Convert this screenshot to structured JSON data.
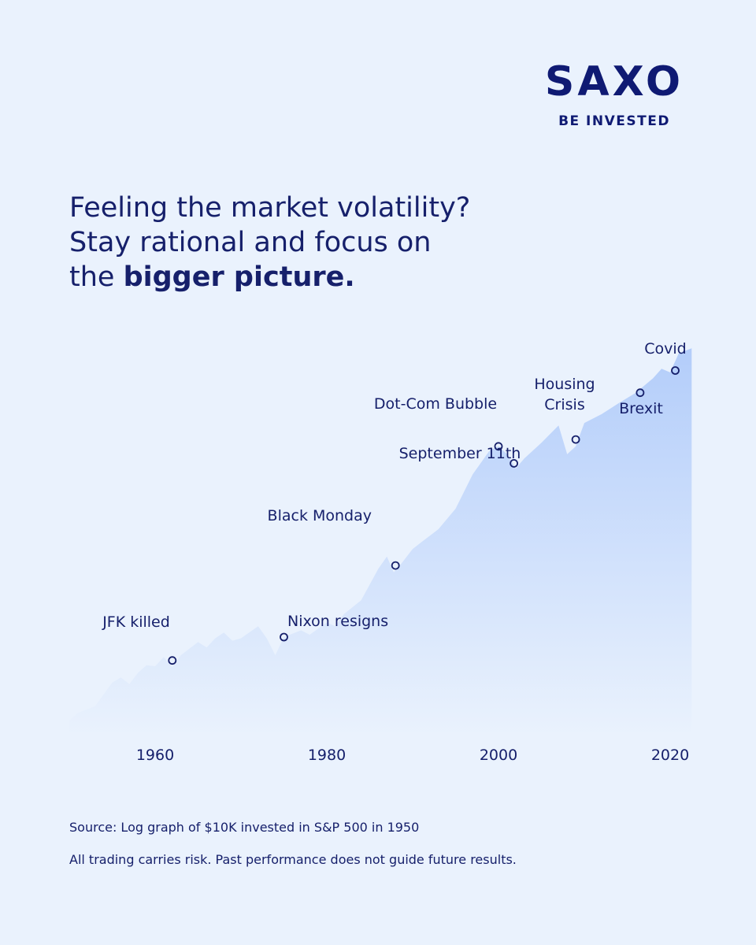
{
  "brand": {
    "name": "SAXO",
    "tagline": "BE INVESTED"
  },
  "headline": {
    "line1": "Feeling the market volatility?",
    "line2": "Stay rational and focus on",
    "line3_prefix": "the ",
    "line3_bold": "bigger picture."
  },
  "chart_data": {
    "type": "area",
    "scale": "log",
    "xlabel": "",
    "ylabel": "",
    "x_ticks": [
      "1960",
      "1980",
      "2000",
      "2020"
    ],
    "xlim": [
      1950,
      2022.5
    ],
    "grid": false,
    "colors": {
      "fill_top": "#b3cdfa",
      "fill_bottom": "#eaf2fd",
      "marker": "#16206b"
    },
    "series": [
      {
        "x": [
          1950,
          1951,
          1953,
          1955,
          1956,
          1957,
          1958,
          1959,
          1960,
          1961,
          1962,
          1963,
          1965,
          1966,
          1967,
          1968,
          1969,
          1970,
          1972,
          1973,
          1974,
          1975,
          1977,
          1978,
          1980,
          1981,
          1982,
          1984,
          1986,
          1987,
          1987.8,
          1988.5,
          1990,
          1991,
          1993,
          1995,
          1997,
          1999,
          2000,
          2001,
          2002,
          2003,
          2005,
          2007,
          2008,
          2009,
          2010,
          2012,
          2014,
          2016,
          2018,
          2019,
          2020,
          2021,
          2022.5
        ],
        "y": [
          10000,
          11500,
          13000,
          20000,
          22000,
          19500,
          24000,
          27500,
          27000,
          32000,
          26500,
          33000,
          42000,
          38000,
          45000,
          50000,
          43000,
          45000,
          56000,
          45000,
          33000,
          46000,
          52000,
          48000,
          60000,
          56000,
          70000,
          90000,
          160000,
          200000,
          150000,
          170000,
          230000,
          260000,
          330000,
          480000,
          900000,
          1400000,
          1500000,
          1300000,
          1000000,
          1200000,
          1600000,
          2200000,
          1300000,
          1500000,
          2300000,
          2700000,
          3300000,
          4000000,
          5200000,
          6200000,
          5800000,
          8200000,
          9000000
        ]
      }
    ],
    "annotations": [
      {
        "label": "JFK killed",
        "x": 1962,
        "y": 30000
      },
      {
        "label": "Nixon resigns",
        "x": 1975,
        "y": 46000
      },
      {
        "label": "Black Monday",
        "x": 1988,
        "y": 170000
      },
      {
        "label": "Dot-Com Bubble",
        "x": 2000,
        "y": 1500000
      },
      {
        "label": "September 11th",
        "x": 2001.8,
        "y": 1100000
      },
      {
        "label": "Housing Crisis",
        "x": 2009,
        "y": 1700000
      },
      {
        "label": "Brexit",
        "x": 2016.5,
        "y": 4000000
      },
      {
        "label": "Covid",
        "x": 2020.6,
        "y": 6000000
      }
    ]
  },
  "footnotes": {
    "source": "Source: Log graph of $10K invested in S&P 500 in 1950",
    "risk": "All trading carries risk. Past performance does not guide future results."
  }
}
